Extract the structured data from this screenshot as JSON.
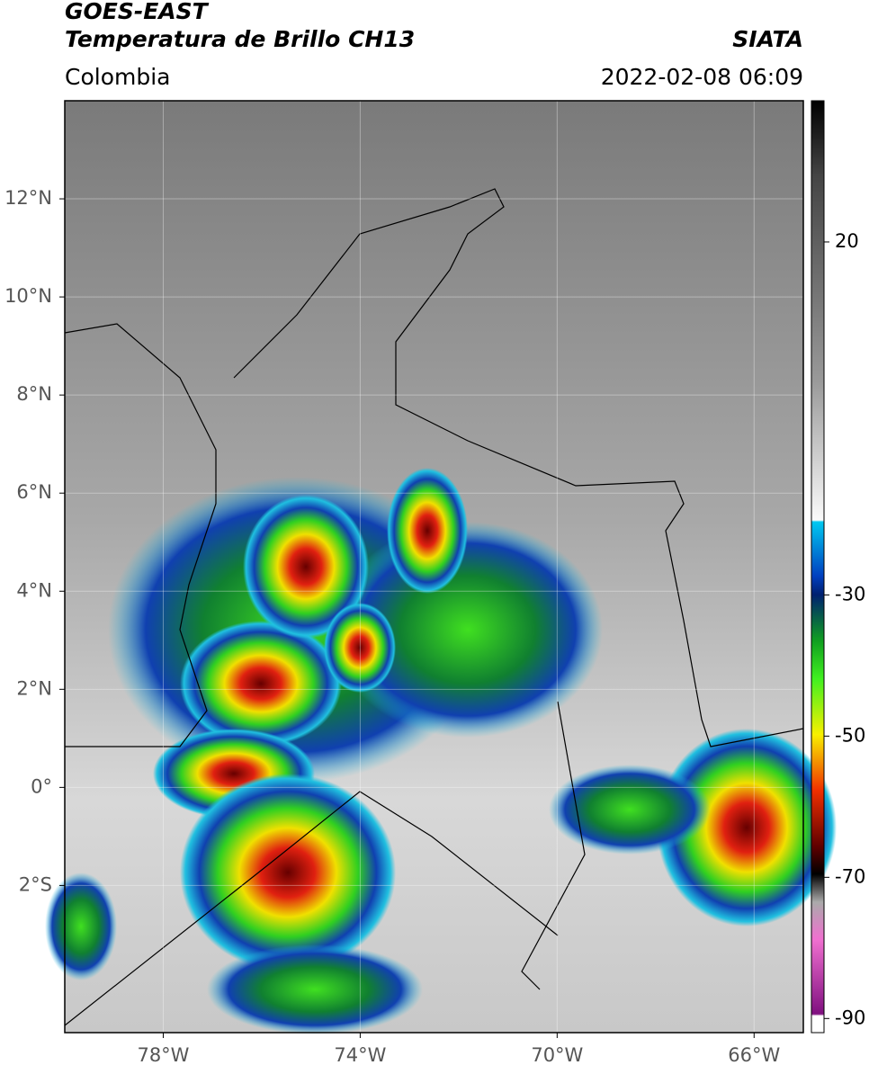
{
  "header": {
    "title": "GOES-EAST",
    "subtitle": "Temperatura de Brillo CH13",
    "source": "SIATA",
    "region": "Colombia",
    "timestamp": "2022-02-08 06:09"
  },
  "map": {
    "xlim": [
      -80,
      -65
    ],
    "ylim": [
      -5,
      14
    ],
    "xticks": [
      {
        "value": -78,
        "label": "78°W"
      },
      {
        "value": -74,
        "label": "74°W"
      },
      {
        "value": -70,
        "label": "70°W"
      },
      {
        "value": -66,
        "label": "66°W"
      }
    ],
    "yticks": [
      {
        "value": 12,
        "label": "12°N"
      },
      {
        "value": 10,
        "label": "10°N"
      },
      {
        "value": 8,
        "label": "8°N"
      },
      {
        "value": 6,
        "label": "6°N"
      },
      {
        "value": 4,
        "label": "4°N"
      },
      {
        "value": 2,
        "label": "2°N"
      },
      {
        "value": 0,
        "label": "0°"
      },
      {
        "value": -2,
        "label": "2°S"
      }
    ],
    "grid": true
  },
  "colorbar": {
    "lim": [
      40,
      -92
    ],
    "ticks": [
      20,
      -30,
      -50,
      -70,
      -90
    ]
  }
}
